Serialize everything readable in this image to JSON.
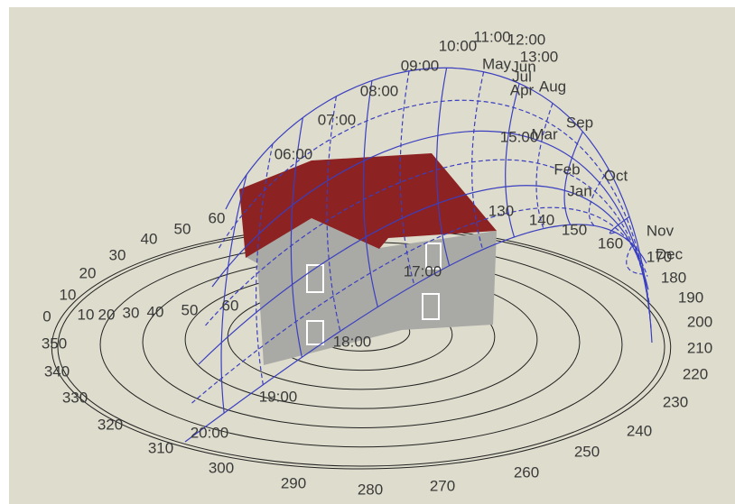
{
  "azimuth_labels": [
    "0",
    "10",
    "20",
    "30",
    "40",
    "50",
    "60",
    "130",
    "140",
    "150",
    "160",
    "170",
    "180",
    "190",
    "200",
    "210",
    "220",
    "230",
    "240",
    "250",
    "260",
    "270",
    "280",
    "290",
    "300",
    "310",
    "320",
    "330",
    "340",
    "350"
  ],
  "altitude_labels": [
    "10",
    "20",
    "30",
    "40",
    "50",
    "60"
  ],
  "hour_labels": [
    "06:00",
    "07:00",
    "08:00",
    "09:00",
    "10:00",
    "11:00",
    "12:00",
    "13:00",
    "15:00",
    "17:00",
    "18:00",
    "19:00",
    "20:00"
  ],
  "month_labels": [
    "May",
    "Jun",
    "Jul",
    "Apr",
    "Aug",
    "Mar",
    "Sep",
    "Feb",
    "Oct",
    "Jan",
    "Nov",
    "Dec"
  ]
}
